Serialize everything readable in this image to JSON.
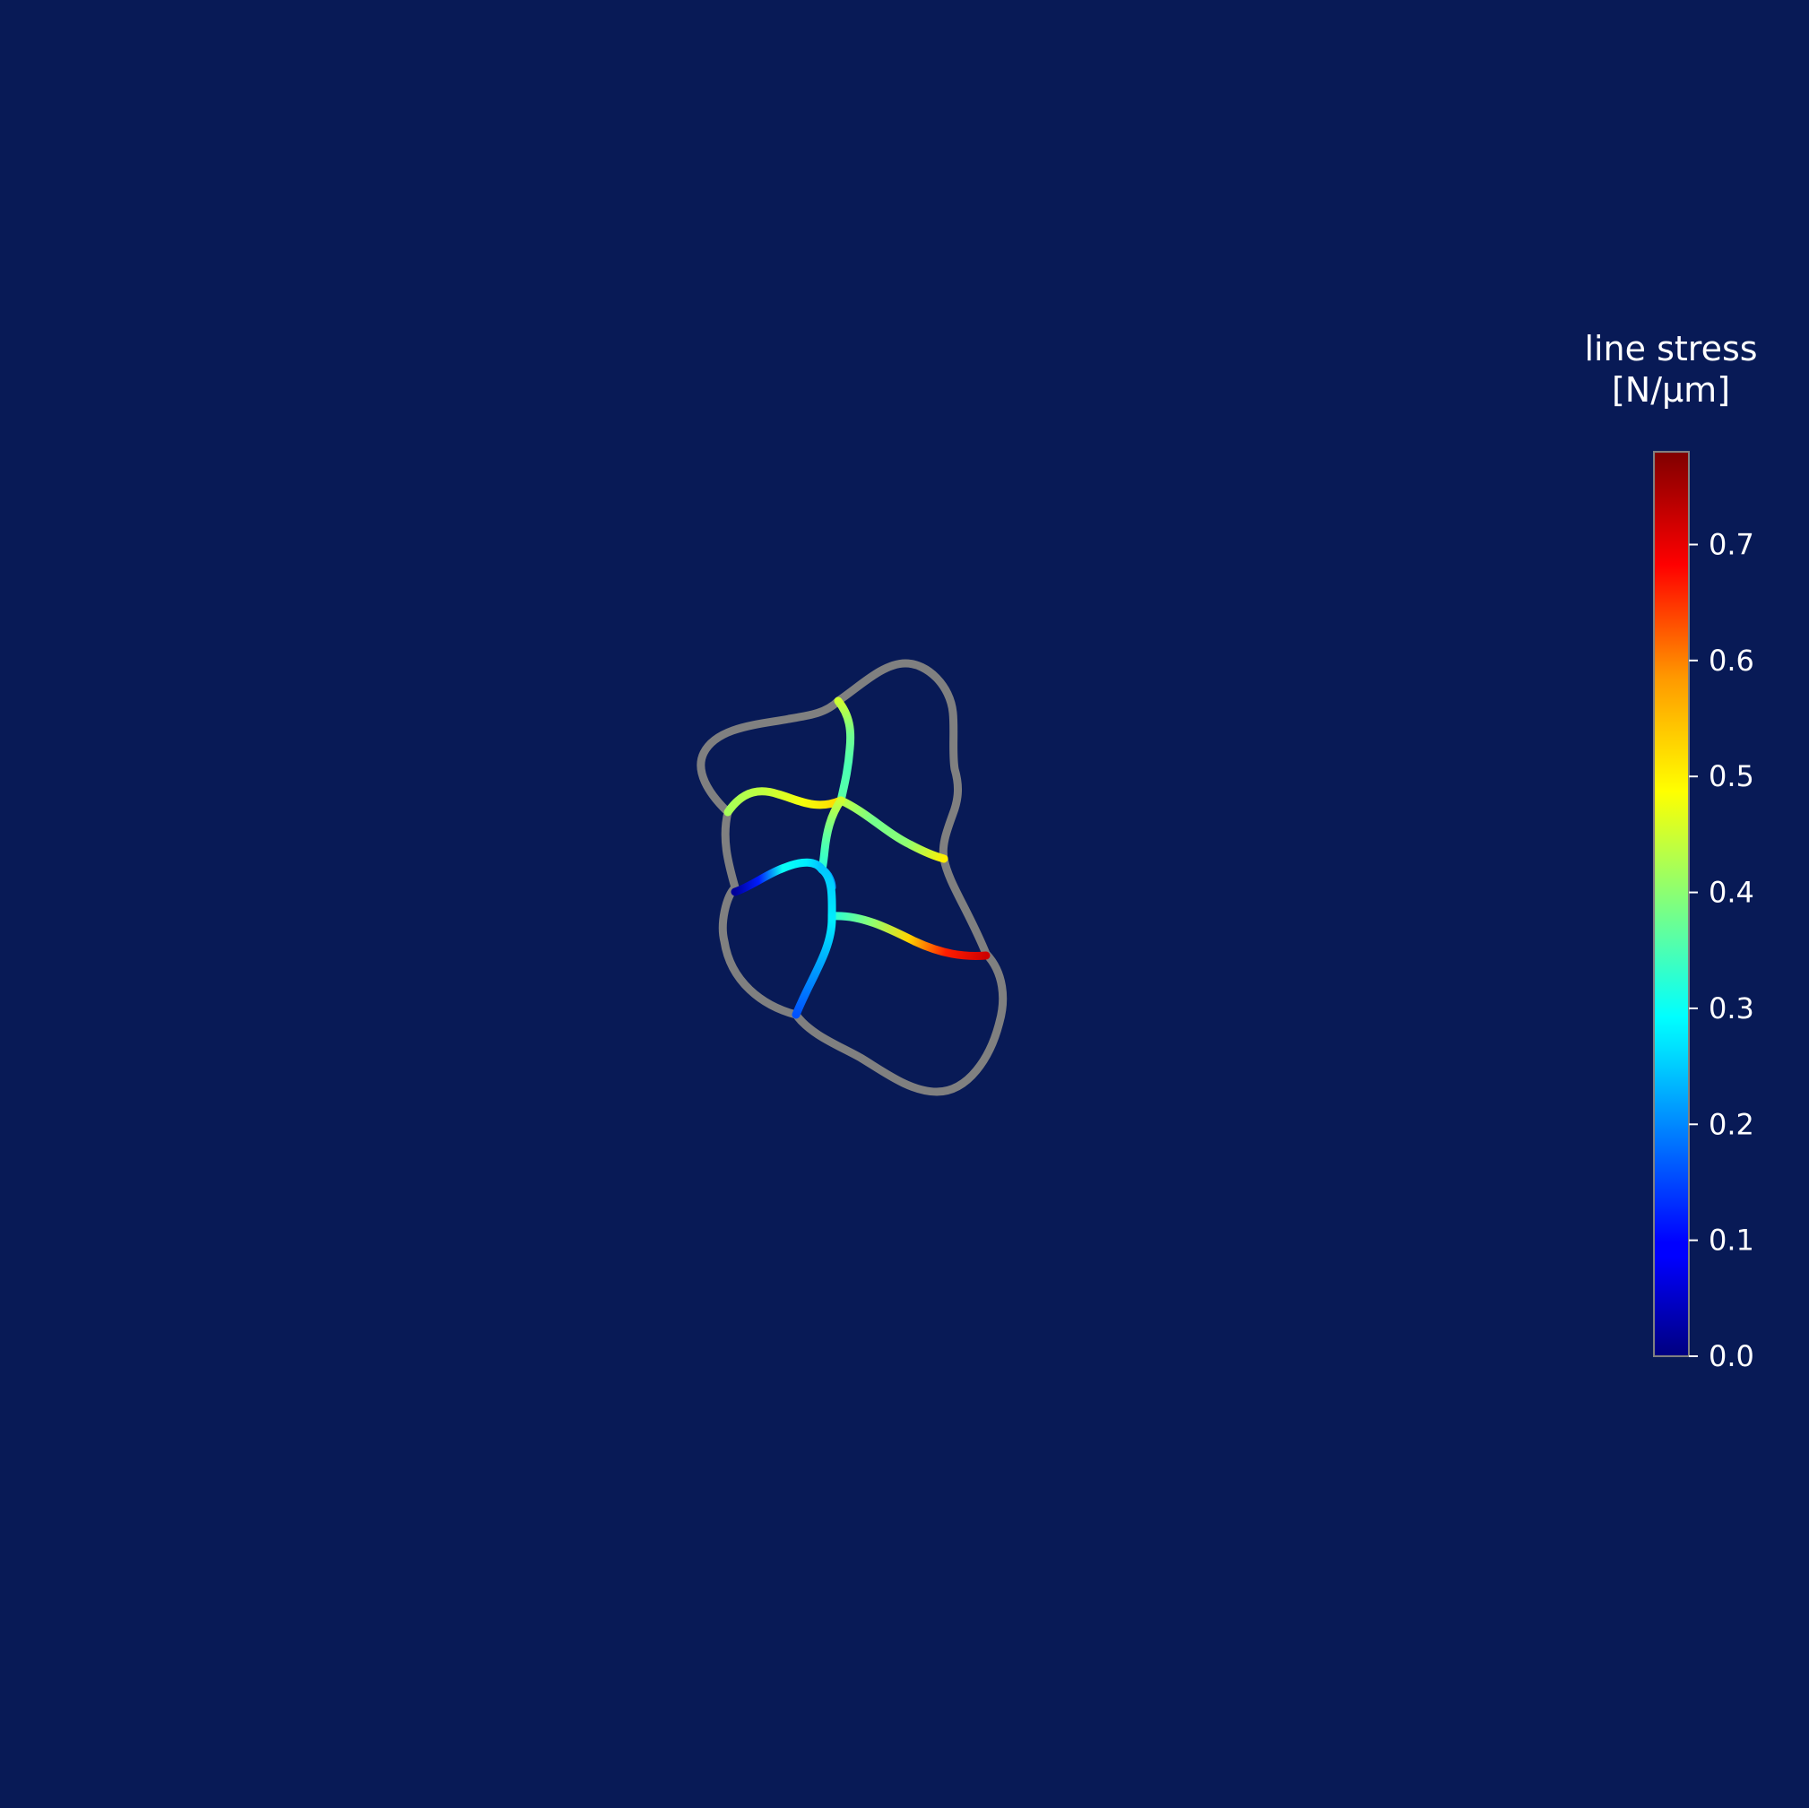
{
  "chart_data": {
    "type": "line",
    "title": "",
    "colorbar": {
      "label_lines": [
        "line stress",
        "[N/µm]"
      ],
      "colormap": "jet",
      "range": [
        0.0,
        0.78
      ],
      "ticks": [
        0.0,
        0.1,
        0.2,
        0.3,
        0.4,
        0.5,
        0.6,
        0.7
      ],
      "tick_labels": [
        "0.0",
        "0.1",
        "0.2",
        "0.3",
        "0.4",
        "0.5",
        "0.6",
        "0.7"
      ],
      "placement": "right"
    },
    "boundary_color": "#808080",
    "background_color": "#081a56",
    "edges": [
      {
        "name": "top-vertical",
        "values": [
          0.45,
          0.38,
          0.35,
          0.36
        ]
      },
      {
        "name": "upper-left-horizontal",
        "values": [
          0.42,
          0.44,
          0.48,
          0.52
        ]
      },
      {
        "name": "upper-right-diagonal",
        "values": [
          0.44,
          0.38,
          0.4,
          0.5
        ]
      },
      {
        "name": "middle-vertical",
        "values": [
          0.45,
          0.37,
          0.32
        ]
      },
      {
        "name": "lower-left-horizontal",
        "values": [
          0.02,
          0.12,
          0.3,
          0.28,
          0.22
        ]
      },
      {
        "name": "lower-right-horizontal",
        "values": [
          0.32,
          0.4,
          0.52,
          0.66,
          0.72
        ]
      },
      {
        "name": "lower-vertical",
        "values": [
          0.25,
          0.28,
          0.22,
          0.16
        ]
      }
    ]
  }
}
